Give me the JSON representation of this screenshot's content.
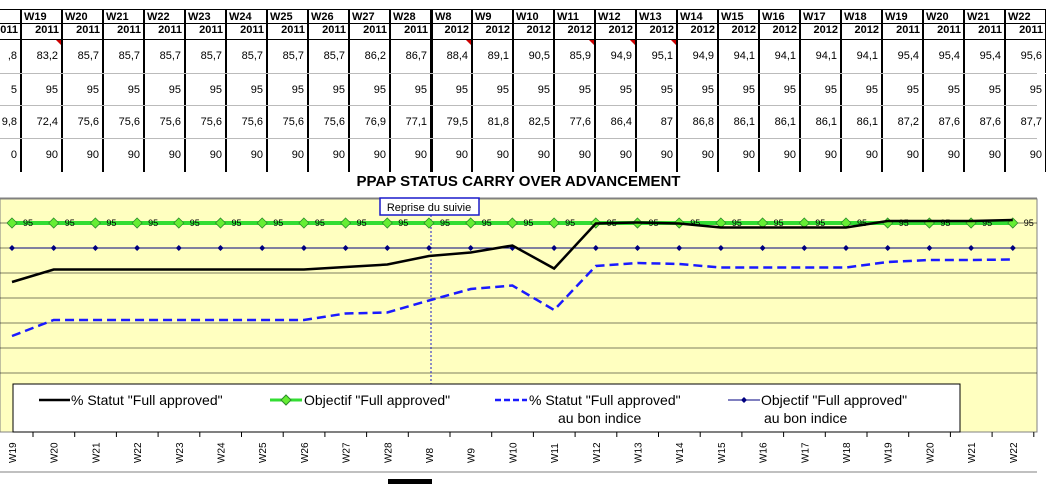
{
  "table": {
    "weeks": [
      "8",
      "W19",
      "W20",
      "W21",
      "W22",
      "W23",
      "W24",
      "W25",
      "W26",
      "W27",
      "W28",
      "W8",
      "W9",
      "W10",
      "W11",
      "W12",
      "W13",
      "W14",
      "W15",
      "W16",
      "W17",
      "W18",
      "W19",
      "W20",
      "W21",
      "W22"
    ],
    "years": [
      "011",
      "2011",
      "2011",
      "2011",
      "2011",
      "2011",
      "2011",
      "2011",
      "2011",
      "2011",
      "2011",
      "2012",
      "2012",
      "2012",
      "2012",
      "2012",
      "2012",
      "2012",
      "2012",
      "2012",
      "2012",
      "2012",
      "2011",
      "2011",
      "2011",
      "2011"
    ],
    "rows": [
      [
        ",8",
        "83,2",
        "85,7",
        "85,7",
        "85,7",
        "85,7",
        "85,7",
        "85,7",
        "85,7",
        "86,2",
        "86,7",
        "88,4",
        "89,1",
        "90,5",
        "85,9",
        "94,9",
        "95,1",
        "94,9",
        "94,1",
        "94,1",
        "94,1",
        "94,1",
        "95,4",
        "95,4",
        "95,4",
        "95,6"
      ],
      [
        "5",
        "95",
        "95",
        "95",
        "95",
        "95",
        "95",
        "95",
        "95",
        "95",
        "95",
        "95",
        "95",
        "95",
        "95",
        "95",
        "95",
        "95",
        "95",
        "95",
        "95",
        "95",
        "95",
        "95",
        "95",
        "95"
      ],
      [
        "9,8",
        "72,4",
        "75,6",
        "75,6",
        "75,6",
        "75,6",
        "75,6",
        "75,6",
        "75,6",
        "76,9",
        "77,1",
        "79,5",
        "81,8",
        "82,5",
        "77,6",
        "86,4",
        "87",
        "86,8",
        "86,1",
        "86,1",
        "86,1",
        "86,1",
        "87,2",
        "87,6",
        "87,6",
        "87,7"
      ],
      [
        "0",
        "90",
        "90",
        "90",
        "90",
        "90",
        "90",
        "90",
        "90",
        "90",
        "90",
        "90",
        "90",
        "90",
        "90",
        "90",
        "90",
        "90",
        "90",
        "90",
        "90",
        "90",
        "90",
        "90",
        "90",
        "90"
      ]
    ]
  },
  "chart_data": {
    "type": "line",
    "title": "PPAP STATUS CARRY OVER ADVANCEMENT",
    "categories": [
      "W19",
      "W20",
      "W21",
      "W22",
      "W23",
      "W24",
      "W25",
      "W26",
      "W27",
      "W28",
      "W8",
      "W9",
      "W10",
      "W11",
      "W12",
      "W13",
      "W14",
      "W15",
      "W16",
      "W17",
      "W18",
      "W19",
      "W20",
      "W21",
      "W22"
    ],
    "series": [
      {
        "name": "% Statut \"Full approved\"",
        "color": "#000000",
        "style": "solid",
        "values": [
          83.2,
          85.7,
          85.7,
          85.7,
          85.7,
          85.7,
          85.7,
          85.7,
          86.2,
          86.7,
          88.4,
          89.1,
          90.5,
          85.9,
          94.9,
          95.1,
          94.9,
          94.1,
          94.1,
          94.1,
          94.1,
          95.4,
          95.4,
          95.4,
          95.6
        ]
      },
      {
        "name": "Objectif \"Full approved\"",
        "color": "#33dd33",
        "style": "diamond",
        "values": [
          95,
          95,
          95,
          95,
          95,
          95,
          95,
          95,
          95,
          95,
          95,
          95,
          95,
          95,
          95,
          95,
          95,
          95,
          95,
          95,
          95,
          95,
          95,
          95,
          95
        ]
      },
      {
        "name": "% Statut \"Full approved\" au bon indice",
        "color": "#1a1aff",
        "style": "dashed",
        "values": [
          72.4,
          75.6,
          75.6,
          75.6,
          75.6,
          75.6,
          75.6,
          75.6,
          76.9,
          77.1,
          79.5,
          81.8,
          82.5,
          77.6,
          86.4,
          87,
          86.8,
          86.1,
          86.1,
          86.1,
          86.1,
          87.2,
          87.6,
          87.6,
          87.7
        ]
      },
      {
        "name": "Objectif \"Full approved\" au bon indice",
        "color": "#000080",
        "style": "dot",
        "values": [
          90,
          90,
          90,
          90,
          90,
          90,
          90,
          90,
          90,
          90,
          90,
          90,
          90,
          90,
          90,
          90,
          90,
          90,
          90,
          90,
          90,
          90,
          90,
          90,
          90
        ]
      }
    ],
    "data_labels": "95",
    "annotation": "Reprise du suivie",
    "legend": [
      "% Statut \"Full approved\"",
      "Objectif \"Full approved\"",
      "% Statut \"Full approved\"",
      "au bon indice",
      "Objectif \"Full approved\"",
      "au bon indice"
    ],
    "grid": true,
    "legend_placement": "bottom",
    "plot_background": "#ffffc0"
  }
}
